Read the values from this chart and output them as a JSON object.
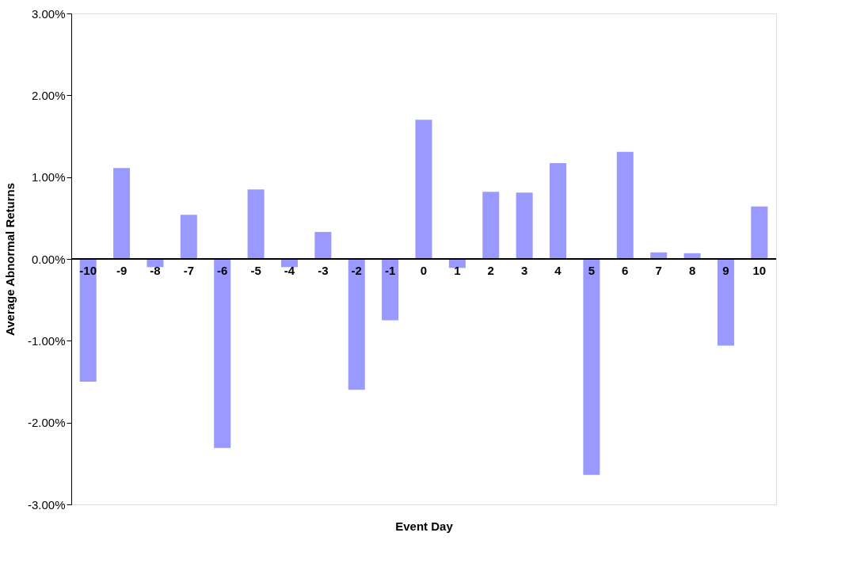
{
  "chart_data": {
    "type": "bar",
    "xlabel": "Event Day",
    "ylabel": "Average Abnormal Returns",
    "categories": [
      "-10",
      "-9",
      "-8",
      "-7",
      "-6",
      "-5",
      "-4",
      "-3",
      "-2",
      "-1",
      "0",
      "1",
      "2",
      "3",
      "4",
      "5",
      "6",
      "7",
      "8",
      "9",
      "10"
    ],
    "values": [
      -1.5,
      1.11,
      -0.1,
      0.54,
      -2.31,
      0.85,
      -0.1,
      0.33,
      -1.6,
      -0.75,
      1.7,
      -0.11,
      0.82,
      0.81,
      1.17,
      -2.64,
      1.31,
      0.08,
      0.07,
      -1.06,
      0.64
    ],
    "color": "#9999ff",
    "ylim": [
      -3,
      3
    ],
    "yticks": [
      {
        "value": -3,
        "label": "-3.00%"
      },
      {
        "value": -2,
        "label": "-2.00%"
      },
      {
        "value": -1,
        "label": "-1.00%"
      },
      {
        "value": 0,
        "label": "0.00%"
      },
      {
        "value": 1,
        "label": "1.00%"
      },
      {
        "value": 2,
        "label": "2.00%"
      },
      {
        "value": 3,
        "label": "3.00%"
      }
    ],
    "grid": false
  }
}
